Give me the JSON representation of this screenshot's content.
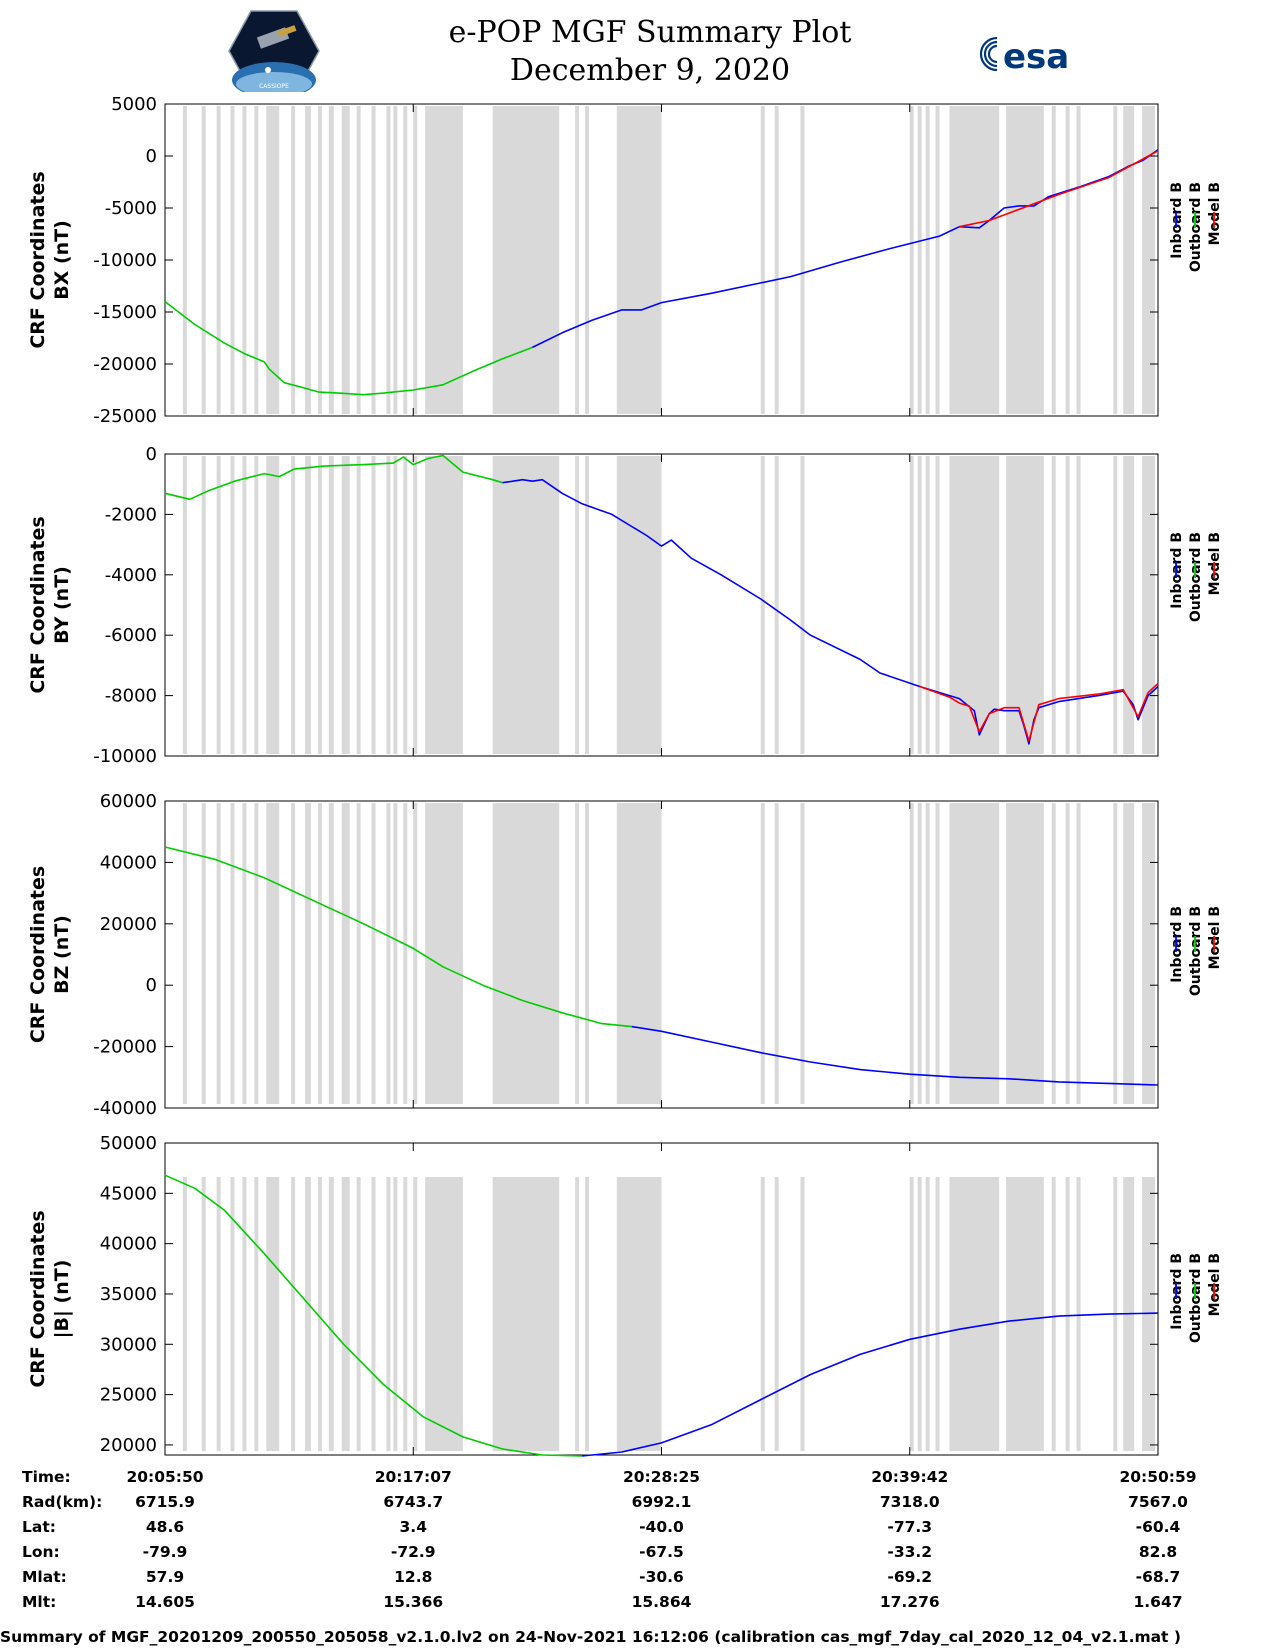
{
  "title": {
    "line1": "e-POP MGF Summary Plot",
    "line2": "December 9, 2020"
  },
  "logos": {
    "mission": "CASSIOPE",
    "esa": "esa"
  },
  "colors": {
    "inboard": "#0000ff",
    "outboard": "#00cc00",
    "model": "#ff0000",
    "shading": "#d9d9d9"
  },
  "legend": [
    "Inboard B",
    "Outboard B",
    "Model B"
  ],
  "chart_data": [
    {
      "type": "line",
      "id": "bx",
      "ylabel": [
        "CRF Coordinates",
        "BX (nT)"
      ],
      "ylim": [
        -25000,
        5000
      ],
      "yticks": [
        5000,
        0,
        -5000,
        -10000,
        -15000,
        -20000,
        -25000
      ],
      "series": [
        {
          "name": "Outboard B",
          "color": "#00cc00",
          "points": [
            [
              0,
              -14000
            ],
            [
              0.03,
              -16200
            ],
            [
              0.06,
              -18000
            ],
            [
              0.08,
              -19000
            ],
            [
              0.1,
              -19800
            ],
            [
              0.105,
              -20500
            ],
            [
              0.12,
              -21800
            ],
            [
              0.14,
              -22300
            ],
            [
              0.155,
              -22700
            ],
            [
              0.175,
              -22800
            ],
            [
              0.2,
              -22950
            ],
            [
              0.22,
              -22800
            ],
            [
              0.25,
              -22500
            ],
            [
              0.28,
              -22000
            ],
            [
              0.31,
              -20700
            ],
            [
              0.34,
              -19500
            ],
            [
              0.37,
              -18400
            ]
          ]
        },
        {
          "name": "Inboard B",
          "color": "#0000ff",
          "points": [
            [
              0.37,
              -18400
            ],
            [
              0.4,
              -17000
            ],
            [
              0.43,
              -15800
            ],
            [
              0.46,
              -14800
            ],
            [
              0.48,
              -14800
            ],
            [
              0.5,
              -14100
            ],
            [
              0.55,
              -13200
            ],
            [
              0.6,
              -12200
            ],
            [
              0.63,
              -11600
            ],
            [
              0.68,
              -10200
            ],
            [
              0.73,
              -8900
            ],
            [
              0.78,
              -7700
            ],
            [
              0.8,
              -6800
            ],
            [
              0.82,
              -6900
            ],
            [
              0.83,
              -6200
            ],
            [
              0.845,
              -5000
            ],
            [
              0.86,
              -4800
            ],
            [
              0.875,
              -4800
            ],
            [
              0.89,
              -3900
            ],
            [
              0.92,
              -3000
            ],
            [
              0.95,
              -2000
            ],
            [
              0.97,
              -1000
            ],
            [
              0.985,
              -400
            ],
            [
              1.0,
              600
            ]
          ]
        },
        {
          "name": "Model B",
          "color": "#ff0000",
          "points": [
            [
              0.8,
              -6800
            ],
            [
              0.83,
              -6200
            ],
            [
              0.9,
              -3700
            ],
            [
              0.95,
              -2100
            ],
            [
              1.0,
              500
            ]
          ]
        }
      ]
    },
    {
      "type": "line",
      "id": "by",
      "ylabel": [
        "CRF Coordinates",
        "BY (nT)"
      ],
      "ylim": [
        -10000,
        0
      ],
      "yticks": [
        0,
        -2000,
        -4000,
        -6000,
        -8000,
        -10000
      ],
      "series": [
        {
          "name": "Outboard B",
          "color": "#00cc00",
          "points": [
            [
              0,
              -1300
            ],
            [
              0.025,
              -1500
            ],
            [
              0.045,
              -1200
            ],
            [
              0.07,
              -900
            ],
            [
              0.1,
              -650
            ],
            [
              0.115,
              -750
            ],
            [
              0.13,
              -500
            ],
            [
              0.16,
              -400
            ],
            [
              0.2,
              -350
            ],
            [
              0.23,
              -300
            ],
            [
              0.24,
              -100
            ],
            [
              0.25,
              -350
            ],
            [
              0.265,
              -150
            ],
            [
              0.28,
              -50
            ],
            [
              0.3,
              -600
            ],
            [
              0.33,
              -850
            ],
            [
              0.34,
              -950
            ]
          ]
        },
        {
          "name": "Inboard B",
          "color": "#0000ff",
          "points": [
            [
              0.34,
              -950
            ],
            [
              0.36,
              -850
            ],
            [
              0.37,
              -900
            ],
            [
              0.38,
              -850
            ],
            [
              0.4,
              -1300
            ],
            [
              0.42,
              -1650
            ],
            [
              0.45,
              -2000
            ],
            [
              0.47,
              -2400
            ],
            [
              0.485,
              -2700
            ],
            [
              0.5,
              -3050
            ],
            [
              0.51,
              -2850
            ],
            [
              0.53,
              -3450
            ],
            [
              0.56,
              -4000
            ],
            [
              0.6,
              -4800
            ],
            [
              0.63,
              -5500
            ],
            [
              0.65,
              -6000
            ],
            [
              0.7,
              -6800
            ],
            [
              0.72,
              -7250
            ],
            [
              0.76,
              -7700
            ],
            [
              0.79,
              -8000
            ],
            [
              0.8,
              -8100
            ],
            [
              0.815,
              -8500
            ],
            [
              0.82,
              -9300
            ],
            [
              0.83,
              -8600
            ],
            [
              0.835,
              -8450
            ],
            [
              0.845,
              -8500
            ],
            [
              0.86,
              -8500
            ],
            [
              0.865,
              -9000
            ],
            [
              0.87,
              -9600
            ],
            [
              0.875,
              -8800
            ],
            [
              0.88,
              -8400
            ],
            [
              0.9,
              -8200
            ],
            [
              0.94,
              -8000
            ],
            [
              0.965,
              -7850
            ],
            [
              0.975,
              -8300
            ],
            [
              0.98,
              -8800
            ],
            [
              0.99,
              -8000
            ],
            [
              1.0,
              -7700
            ]
          ]
        },
        {
          "name": "Model B",
          "color": "#ff0000",
          "points": [
            [
              0.76,
              -7700
            ],
            [
              0.79,
              -8050
            ],
            [
              0.8,
              -8250
            ],
            [
              0.81,
              -8350
            ],
            [
              0.82,
              -9200
            ],
            [
              0.83,
              -8600
            ],
            [
              0.845,
              -8400
            ],
            [
              0.86,
              -8400
            ],
            [
              0.87,
              -9500
            ],
            [
              0.88,
              -8300
            ],
            [
              0.9,
              -8100
            ],
            [
              0.94,
              -7950
            ],
            [
              0.965,
              -7800
            ],
            [
              0.98,
              -8700
            ],
            [
              0.99,
              -7900
            ],
            [
              1.0,
              -7600
            ]
          ]
        }
      ]
    },
    {
      "type": "line",
      "id": "bz",
      "ylabel": [
        "CRF Coordinates",
        "BZ (nT)"
      ],
      "ylim": [
        -40000,
        60000
      ],
      "yticks": [
        60000,
        40000,
        20000,
        0,
        -20000,
        -40000
      ],
      "series": [
        {
          "name": "Outboard B",
          "color": "#00cc00",
          "points": [
            [
              0,
              45000
            ],
            [
              0.05,
              41000
            ],
            [
              0.1,
              35000
            ],
            [
              0.15,
              27500
            ],
            [
              0.2,
              20000
            ],
            [
              0.25,
              12000
            ],
            [
              0.28,
              6000
            ],
            [
              0.32,
              0
            ],
            [
              0.36,
              -5000
            ],
            [
              0.4,
              -9000
            ],
            [
              0.44,
              -12500
            ],
            [
              0.47,
              -13500
            ]
          ]
        },
        {
          "name": "Inboard B",
          "color": "#0000ff",
          "points": [
            [
              0.47,
              -13500
            ],
            [
              0.5,
              -15000
            ],
            [
              0.55,
              -18500
            ],
            [
              0.6,
              -22000
            ],
            [
              0.65,
              -25000
            ],
            [
              0.7,
              -27500
            ],
            [
              0.75,
              -29000
            ],
            [
              0.8,
              -30000
            ],
            [
              0.85,
              -30500
            ],
            [
              0.9,
              -31500
            ],
            [
              0.95,
              -32000
            ],
            [
              1.0,
              -32500
            ]
          ]
        }
      ]
    },
    {
      "type": "line",
      "id": "bmag",
      "ylabel": [
        "CRF Coordinates",
        "|B| (nT)"
      ],
      "ylim": [
        19000,
        50000
      ],
      "yticks": [
        50000,
        45000,
        40000,
        35000,
        30000,
        25000,
        20000
      ],
      "series": [
        {
          "name": "Outboard B",
          "color": "#00cc00",
          "points": [
            [
              0,
              46800
            ],
            [
              0.03,
              45500
            ],
            [
              0.06,
              43300
            ],
            [
              0.1,
              39000
            ],
            [
              0.14,
              34500
            ],
            [
              0.18,
              30000
            ],
            [
              0.22,
              26000
            ],
            [
              0.26,
              22800
            ],
            [
              0.3,
              20800
            ],
            [
              0.34,
              19600
            ],
            [
              0.38,
              19000
            ],
            [
              0.42,
              18900
            ]
          ]
        },
        {
          "name": "Inboard B",
          "color": "#0000ff",
          "points": [
            [
              0.42,
              18900
            ],
            [
              0.46,
              19300
            ],
            [
              0.5,
              20200
            ],
            [
              0.55,
              22000
            ],
            [
              0.6,
              24500
            ],
            [
              0.65,
              27000
            ],
            [
              0.7,
              29000
            ],
            [
              0.75,
              30500
            ],
            [
              0.8,
              31500
            ],
            [
              0.85,
              32300
            ],
            [
              0.9,
              32800
            ],
            [
              0.95,
              33000
            ],
            [
              1.0,
              33100
            ]
          ]
        }
      ]
    }
  ],
  "gap_intervals": [
    [
      0.018,
      0.022
    ],
    [
      0.037,
      0.041
    ],
    [
      0.052,
      0.056
    ],
    [
      0.066,
      0.07
    ],
    [
      0.078,
      0.082
    ],
    [
      0.09,
      0.094
    ],
    [
      0.102,
      0.115
    ],
    [
      0.127,
      0.131
    ],
    [
      0.141,
      0.147
    ],
    [
      0.154,
      0.158
    ],
    [
      0.165,
      0.17
    ],
    [
      0.178,
      0.186
    ],
    [
      0.193,
      0.197
    ],
    [
      0.208,
      0.212
    ],
    [
      0.223,
      0.227
    ],
    [
      0.23,
      0.234
    ],
    [
      0.24,
      0.244
    ],
    [
      0.25,
      0.254
    ],
    [
      0.262,
      0.3
    ],
    [
      0.33,
      0.397
    ],
    [
      0.413,
      0.417
    ],
    [
      0.423,
      0.427
    ],
    [
      0.455,
      0.5
    ],
    [
      0.6,
      0.604
    ],
    [
      0.614,
      0.618
    ],
    [
      0.64,
      0.644
    ],
    [
      0.75,
      0.754
    ],
    [
      0.758,
      0.762
    ],
    [
      0.766,
      0.77
    ],
    [
      0.776,
      0.78
    ],
    [
      0.79,
      0.84
    ],
    [
      0.847,
      0.885
    ],
    [
      0.893,
      0.897
    ],
    [
      0.907,
      0.911
    ],
    [
      0.918,
      0.922
    ],
    [
      0.955,
      0.959
    ],
    [
      0.965,
      0.976
    ],
    [
      0.984,
      0.997
    ]
  ],
  "time_table": {
    "row_labels": [
      "Time:",
      "Rad(km):",
      "Lat:",
      "Lon:",
      "Mlat:",
      "Mlt:"
    ],
    "columns": [
      [
        "20:05:50",
        "6715.9",
        "48.6",
        "-79.9",
        "57.9",
        "14.605"
      ],
      [
        "20:17:07",
        "6743.7",
        "3.4",
        "-72.9",
        "12.8",
        "15.366"
      ],
      [
        "20:28:25",
        "6992.1",
        "-40.0",
        "-67.5",
        "-30.6",
        "15.864"
      ],
      [
        "20:39:42",
        "7318.0",
        "-77.3",
        "-33.2",
        "-69.2",
        "17.276"
      ],
      [
        "20:50:59",
        "7567.0",
        "-60.4",
        "82.8",
        "-68.7",
        "1.647"
      ]
    ]
  },
  "footer": "Summary of MGF_20201209_200550_205058_v2.1.0.lv2 on 24-Nov-2021 16:12:06 (calibration cas_mgf_7day_cal_2020_12_04_v2.1.mat )"
}
